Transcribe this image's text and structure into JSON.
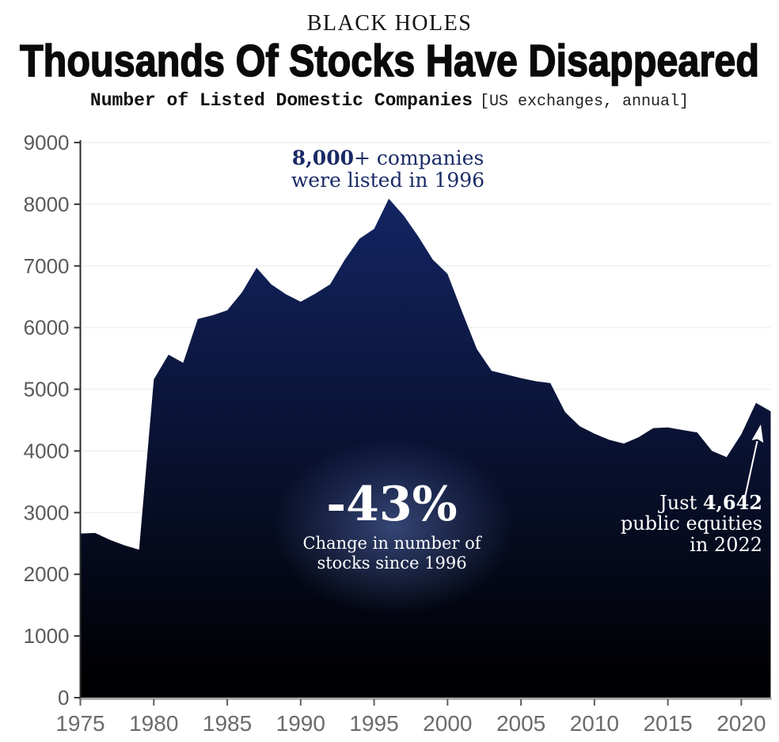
{
  "header": {
    "kicker": "BLACK HOLES",
    "title": "Thousands Of Stocks Have Disappeared",
    "subtitle_main": "Number of Listed Domestic Companies",
    "subtitle_note": "[US exchanges, annual]"
  },
  "annotations": {
    "peak": {
      "bold": "8,000",
      "rest": "+ companies",
      "line2": "were listed in 1996"
    },
    "center": {
      "value": "-43%",
      "caption1": "Change in number of",
      "caption2": "stocks since 1996"
    },
    "latest": {
      "prefix": "Just ",
      "bold": "4,642",
      "line2": "public equities",
      "line3": "in 2022"
    }
  },
  "colors": {
    "area_top": "#15296e",
    "area_bottom": "#000002",
    "glow": "#5a73b9",
    "annotation_navy": "#1a2a66",
    "grid": "#f0f0f1",
    "left_spine": "#2b2b2b",
    "bottom_spine": "#8c8c8c",
    "y_tick": "#3a3a3a",
    "x_tick": "#5f5f5f",
    "y_label": "#5a5a5a",
    "x_label": "#6b6b6b",
    "arrow": "#ffffff"
  },
  "chart_data": {
    "type": "area",
    "title": "Number of Listed Domestic Companies",
    "subtitle": "US exchanges, annual",
    "xlabel": "",
    "ylabel": "",
    "xlim": [
      1975,
      2022
    ],
    "ylim": [
      0,
      9000
    ],
    "x_ticks": [
      1975,
      1980,
      1985,
      1990,
      1995,
      2000,
      2005,
      2010,
      2015,
      2020
    ],
    "y_ticks": [
      0,
      1000,
      2000,
      3000,
      4000,
      5000,
      6000,
      7000,
      8000,
      9000
    ],
    "grid": "horizontal",
    "legend": "none",
    "years": [
      1975,
      1976,
      1977,
      1978,
      1979,
      1980,
      1981,
      1982,
      1983,
      1984,
      1985,
      1986,
      1987,
      1988,
      1989,
      1990,
      1991,
      1992,
      1993,
      1994,
      1995,
      1996,
      1997,
      1998,
      1999,
      2000,
      2001,
      2002,
      2003,
      2004,
      2005,
      2006,
      2007,
      2008,
      2009,
      2010,
      2011,
      2012,
      2013,
      2014,
      2015,
      2016,
      2017,
      2018,
      2019,
      2020,
      2021,
      2022
    ],
    "values": [
      2660,
      2670,
      2560,
      2470,
      2400,
      5160,
      5560,
      5430,
      6140,
      6200,
      6280,
      6570,
      6970,
      6700,
      6540,
      6420,
      6550,
      6700,
      7100,
      7440,
      7600,
      8090,
      7820,
      7480,
      7100,
      6870,
      6250,
      5650,
      5300,
      5240,
      5180,
      5130,
      5100,
      4630,
      4400,
      4280,
      4180,
      4120,
      4220,
      4370,
      4380,
      4340,
      4300,
      4000,
      3900,
      4270,
      4780,
      4642
    ],
    "peak_year": 1996,
    "peak_value": 8090,
    "latest_year": 2022,
    "latest_value": 4642,
    "change_since_1996_pct": -43
  }
}
